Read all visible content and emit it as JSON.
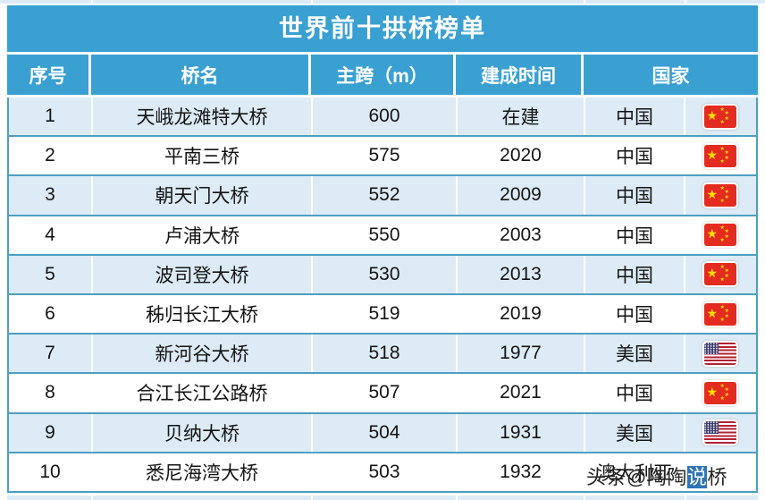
{
  "chart_data": {
    "type": "table",
    "title": "世界前十拱桥榜单",
    "columns": [
      "序号",
      "桥名",
      "主跨（m）",
      "建成时间",
      "国家"
    ],
    "rows": [
      {
        "rank": "1",
        "name": "天峨龙滩特大桥",
        "span_m": "600",
        "year": "在建",
        "country": "中国",
        "flag": "china"
      },
      {
        "rank": "2",
        "name": "平南三桥",
        "span_m": "575",
        "year": "2020",
        "country": "中国",
        "flag": "china"
      },
      {
        "rank": "3",
        "name": "朝天门大桥",
        "span_m": "552",
        "year": "2009",
        "country": "中国",
        "flag": "china"
      },
      {
        "rank": "4",
        "name": "卢浦大桥",
        "span_m": "550",
        "year": "2003",
        "country": "中国",
        "flag": "china"
      },
      {
        "rank": "5",
        "name": "波司登大桥",
        "span_m": "530",
        "year": "2013",
        "country": "中国",
        "flag": "china"
      },
      {
        "rank": "6",
        "name": "秭归长江大桥",
        "span_m": "519",
        "year": "2019",
        "country": "中国",
        "flag": "china"
      },
      {
        "rank": "7",
        "name": "新河谷大桥",
        "span_m": "518",
        "year": "1977",
        "country": "美国",
        "flag": "usa"
      },
      {
        "rank": "8",
        "name": "合江长江公路桥",
        "span_m": "507",
        "year": "2021",
        "country": "中国",
        "flag": "china"
      },
      {
        "rank": "9",
        "name": "贝纳大桥",
        "span_m": "504",
        "year": "1931",
        "country": "美国",
        "flag": "usa"
      },
      {
        "rank": "10",
        "name": "悉尼海湾大桥",
        "span_m": "503",
        "year": "1932",
        "country": "澳大利亚",
        "flag": "none"
      }
    ]
  },
  "watermark": {
    "prefix": "头条@陶陶",
    "highlight": "说",
    "suffix": "桥"
  },
  "colors": {
    "header_blue": "#3aa0d2",
    "row_light_blue": "#dcebf6",
    "row_white": "#ffffff",
    "grid_teal": "#4d9fc1",
    "china_flag_red": "#e42b20",
    "china_flag_yellow": "#ffde00",
    "usa_flag_red": "#b22234",
    "usa_flag_blue": "#3c3b6e",
    "watermark_highlight": "#2e74b5"
  }
}
